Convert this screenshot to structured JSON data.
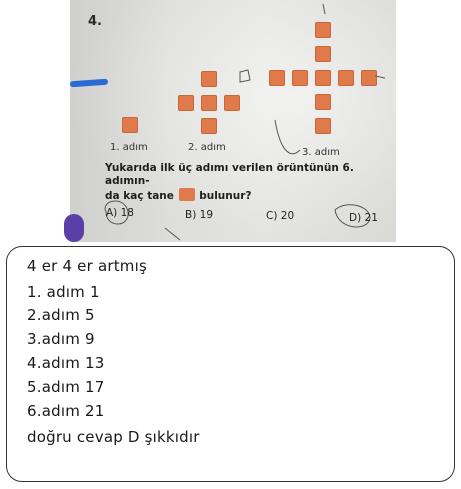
{
  "question": {
    "number": "4.",
    "step_labels": [
      "1. adım",
      "2. adım",
      "3. adım"
    ],
    "stem_part1": "Yukarıda ilk üç adımı verilen örüntünün 6. adımın-",
    "stem_part2": "da kaç tane",
    "stem_part3": "bulunur?",
    "options": [
      "A) 18",
      "B) 19",
      "C) 20",
      "D) 21"
    ]
  },
  "answer": {
    "lines": [
      "4 er 4 er artmış",
      "1. adım 1",
      "2.adım 5",
      "3.adım 9",
      "4.adım 13",
      "5.adım 17",
      "6.adım 21",
      "doğru cevap D şıkkıdır"
    ]
  },
  "colors": {
    "tile": "#e07a4a",
    "box_border": "#333333"
  }
}
